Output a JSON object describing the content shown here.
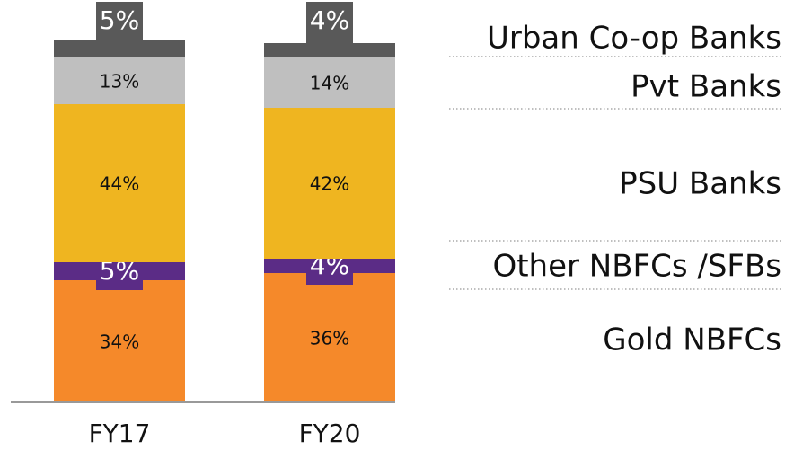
{
  "chart_data": {
    "type": "stacked_bar",
    "categories": [
      "FY17",
      "FY20"
    ],
    "series": [
      {
        "name": "Gold NBFCs",
        "color": "#f5892a",
        "values": [
          34,
          36
        ],
        "value_labels": [
          "34%",
          "36%"
        ]
      },
      {
        "name": "Other NBFCs /SFBs",
        "color": "#5b2c86",
        "values": [
          5,
          4
        ],
        "value_labels": [
          "5%",
          "4%"
        ]
      },
      {
        "name": "PSU Banks",
        "color": "#efb520",
        "values": [
          44,
          42
        ],
        "value_labels": [
          "44%",
          "42%"
        ]
      },
      {
        "name": "Pvt Banks",
        "color": "#bfbfbf",
        "values": [
          13,
          14
        ],
        "value_labels": [
          "13%",
          "14%"
        ]
      },
      {
        "name": "Urban Co-op Banks",
        "color": "#595959",
        "values": [
          5,
          4
        ],
        "value_labels": [
          "5%",
          "4%"
        ]
      }
    ]
  }
}
